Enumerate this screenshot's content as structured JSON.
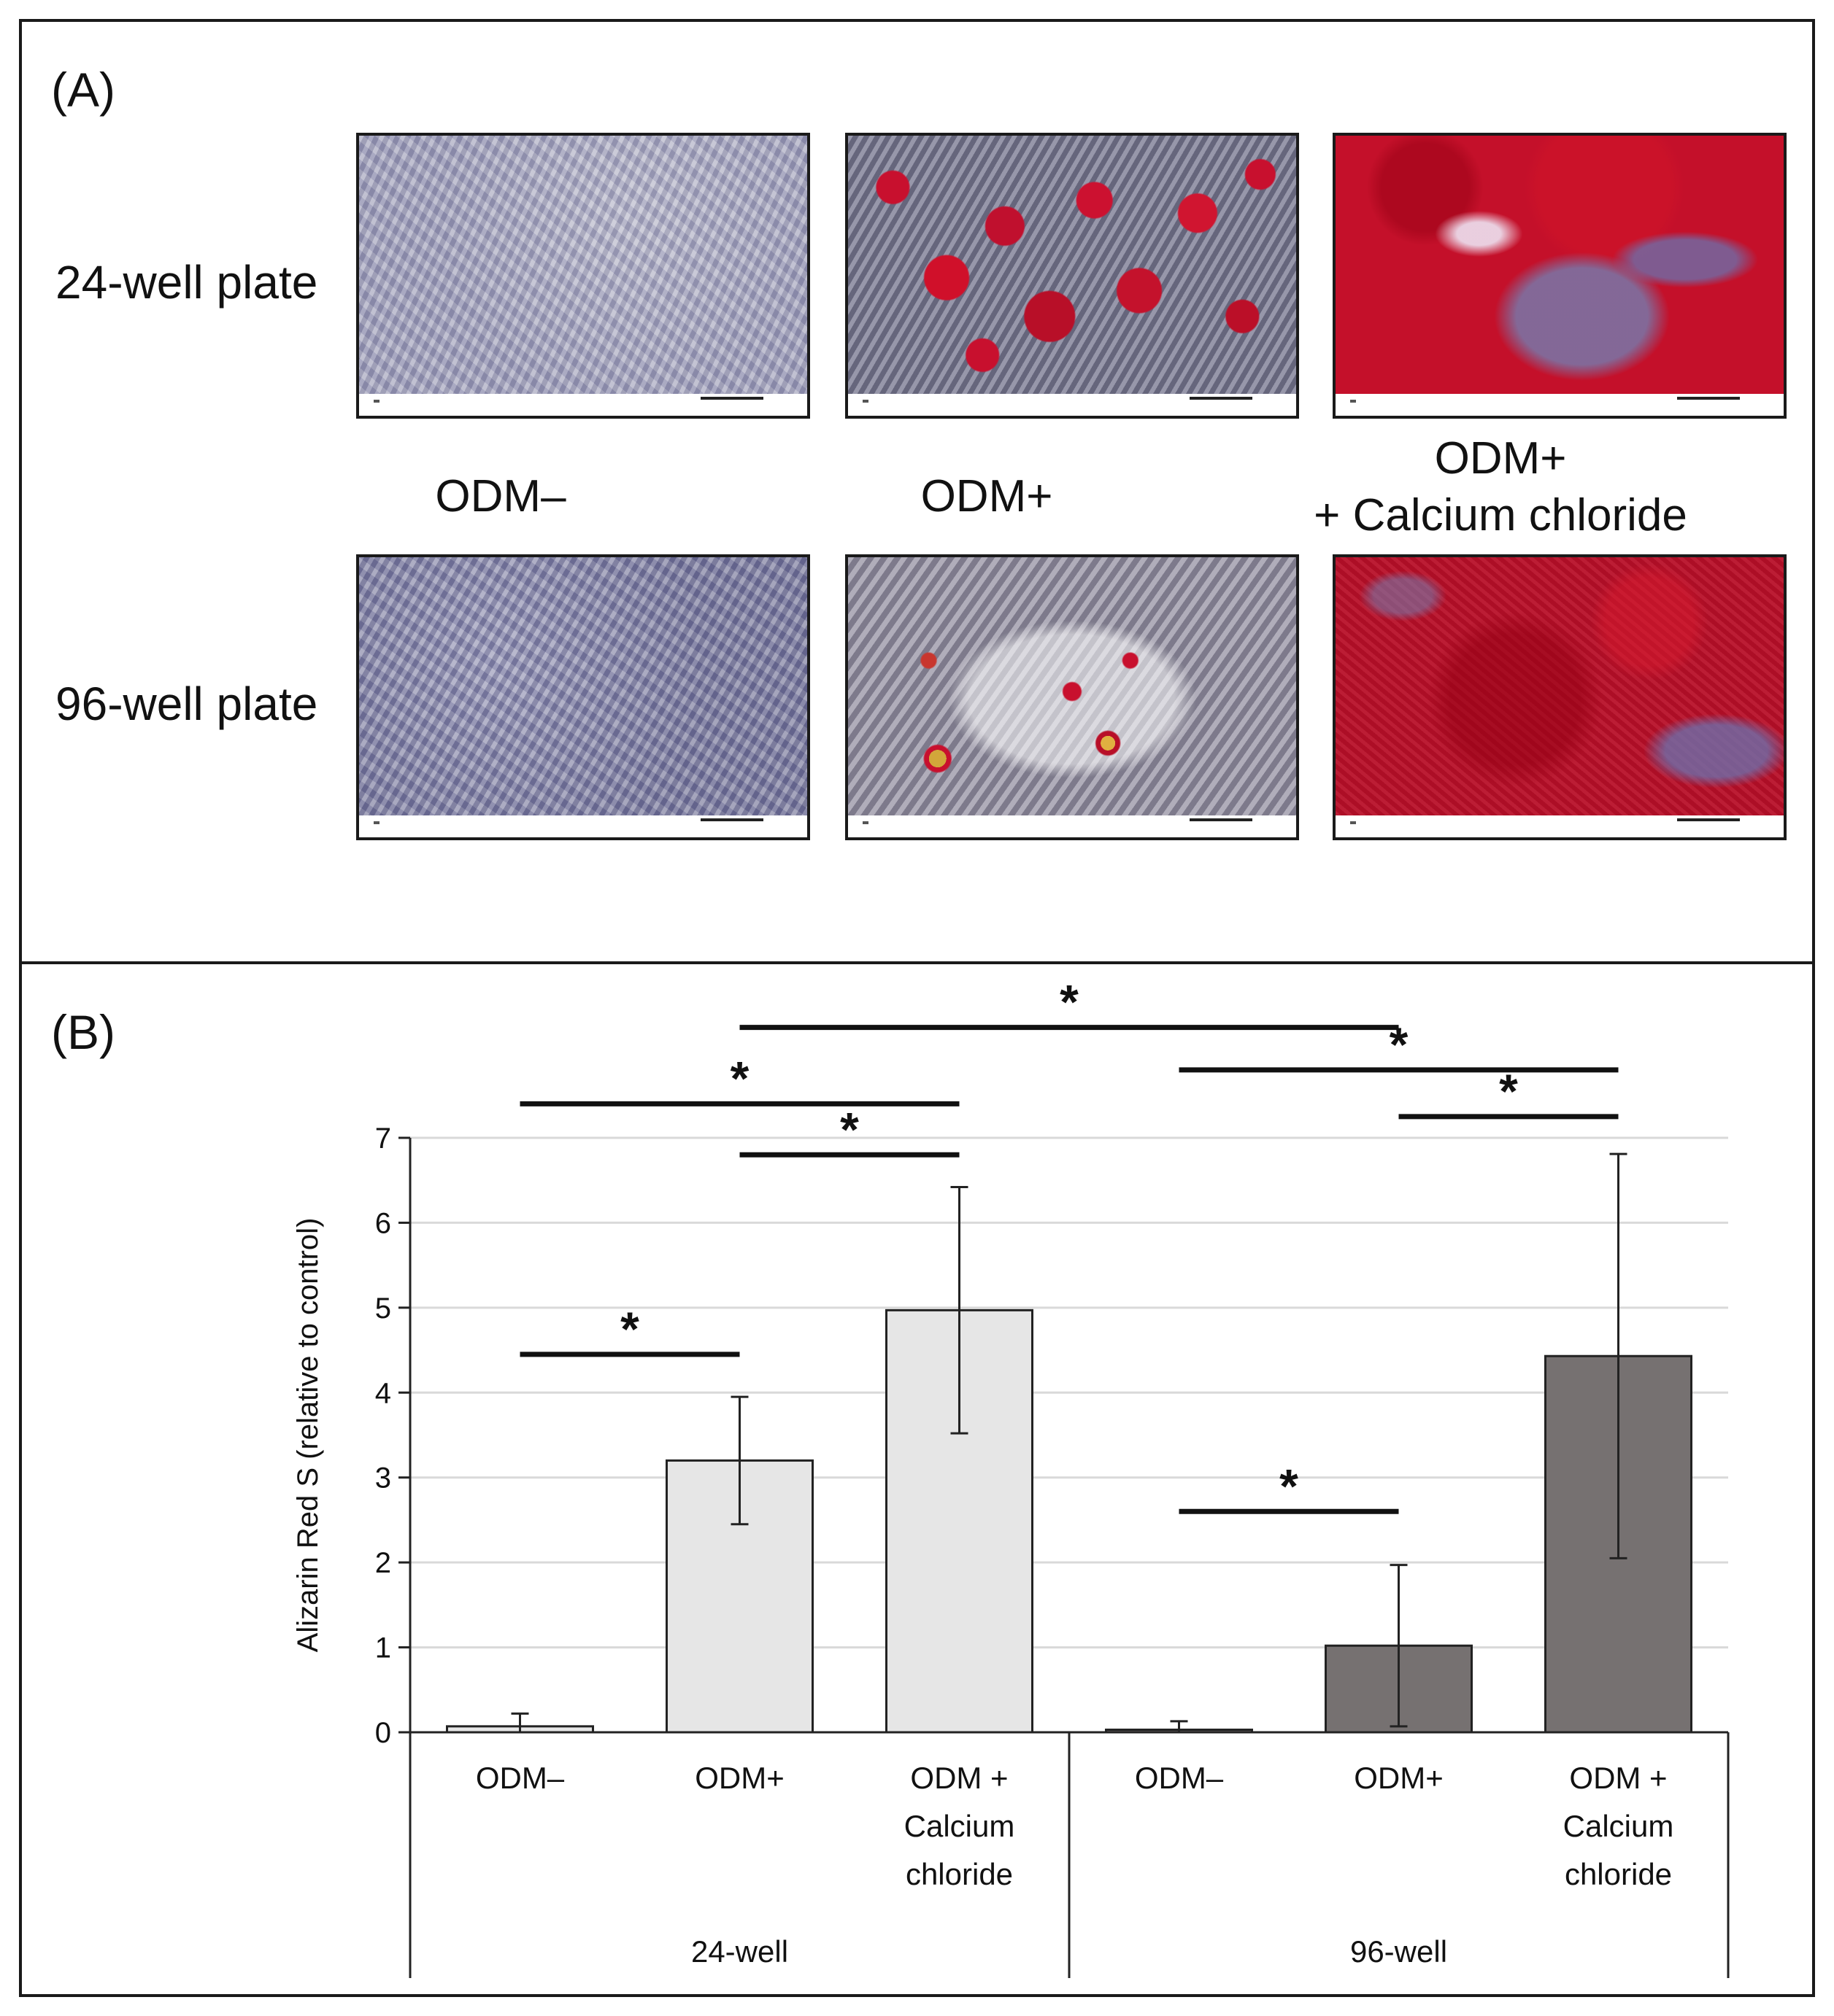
{
  "panel_a": {
    "label": "(A)",
    "rows": [
      "24-well plate",
      "96-well plate"
    ],
    "columns": [
      "ODM–",
      "ODM+",
      "ODM+\n+ Calcium chloride"
    ],
    "images": [
      {
        "row": "24-well plate",
        "column": "ODM–",
        "texture": "tex-neg"
      },
      {
        "row": "24-well plate",
        "column": "ODM+",
        "texture": "tex-pos"
      },
      {
        "row": "24-well plate",
        "column": "ODM+ + Calcium chloride",
        "texture": "tex-ca"
      },
      {
        "row": "96-well plate",
        "column": "ODM–",
        "texture": "tex-neg-96"
      },
      {
        "row": "96-well plate",
        "column": "ODM+",
        "texture": "tex-pos-96"
      },
      {
        "row": "96-well plate",
        "column": "ODM+ + Calcium chloride",
        "texture": "tex-ca-96"
      }
    ]
  },
  "panel_b": {
    "label": "(B)"
  },
  "chart_data": {
    "type": "bar",
    "title": "",
    "ylabel": "Alizarin Red S (relative to control)",
    "xlabel": "",
    "ylim": [
      0,
      7
    ],
    "yticks": [
      0,
      1,
      2,
      3,
      4,
      5,
      6,
      7
    ],
    "grid": true,
    "groups": [
      {
        "name": "24-well",
        "color": "#e6e6e6",
        "bars": [
          {
            "category": "ODM–",
            "value": 0.07,
            "error": 0.15
          },
          {
            "category": "ODM+",
            "value": 3.2,
            "error": 0.75
          },
          {
            "category": "ODM +\nCalcium\nchloride",
            "value": 4.97,
            "error": 1.45
          }
        ]
      },
      {
        "name": "96-well",
        "color": "#767171",
        "bars": [
          {
            "category": "ODM–",
            "value": 0.03,
            "error": 0.1
          },
          {
            "category": "ODM+",
            "value": 1.02,
            "error": 0.95
          },
          {
            "category": "ODM +\nCalcium\nchloride",
            "value": 4.43,
            "error": 2.38
          }
        ]
      }
    ],
    "significance": [
      {
        "from": 0,
        "to": 1,
        "level": 4.45,
        "label": "*"
      },
      {
        "from": 1,
        "to": 2,
        "level": 6.8,
        "label": "*"
      },
      {
        "from": 0,
        "to": 2,
        "level": 7.4,
        "label": "*"
      },
      {
        "from": 1,
        "to": 4,
        "level": 8.3,
        "label": "*"
      },
      {
        "from": 3,
        "to": 4,
        "level": 2.6,
        "label": "*"
      },
      {
        "from": 4,
        "to": 5,
        "level": 7.25,
        "label": "*"
      },
      {
        "from": 3,
        "to": 5,
        "level": 7.8,
        "label": "*"
      }
    ]
  }
}
